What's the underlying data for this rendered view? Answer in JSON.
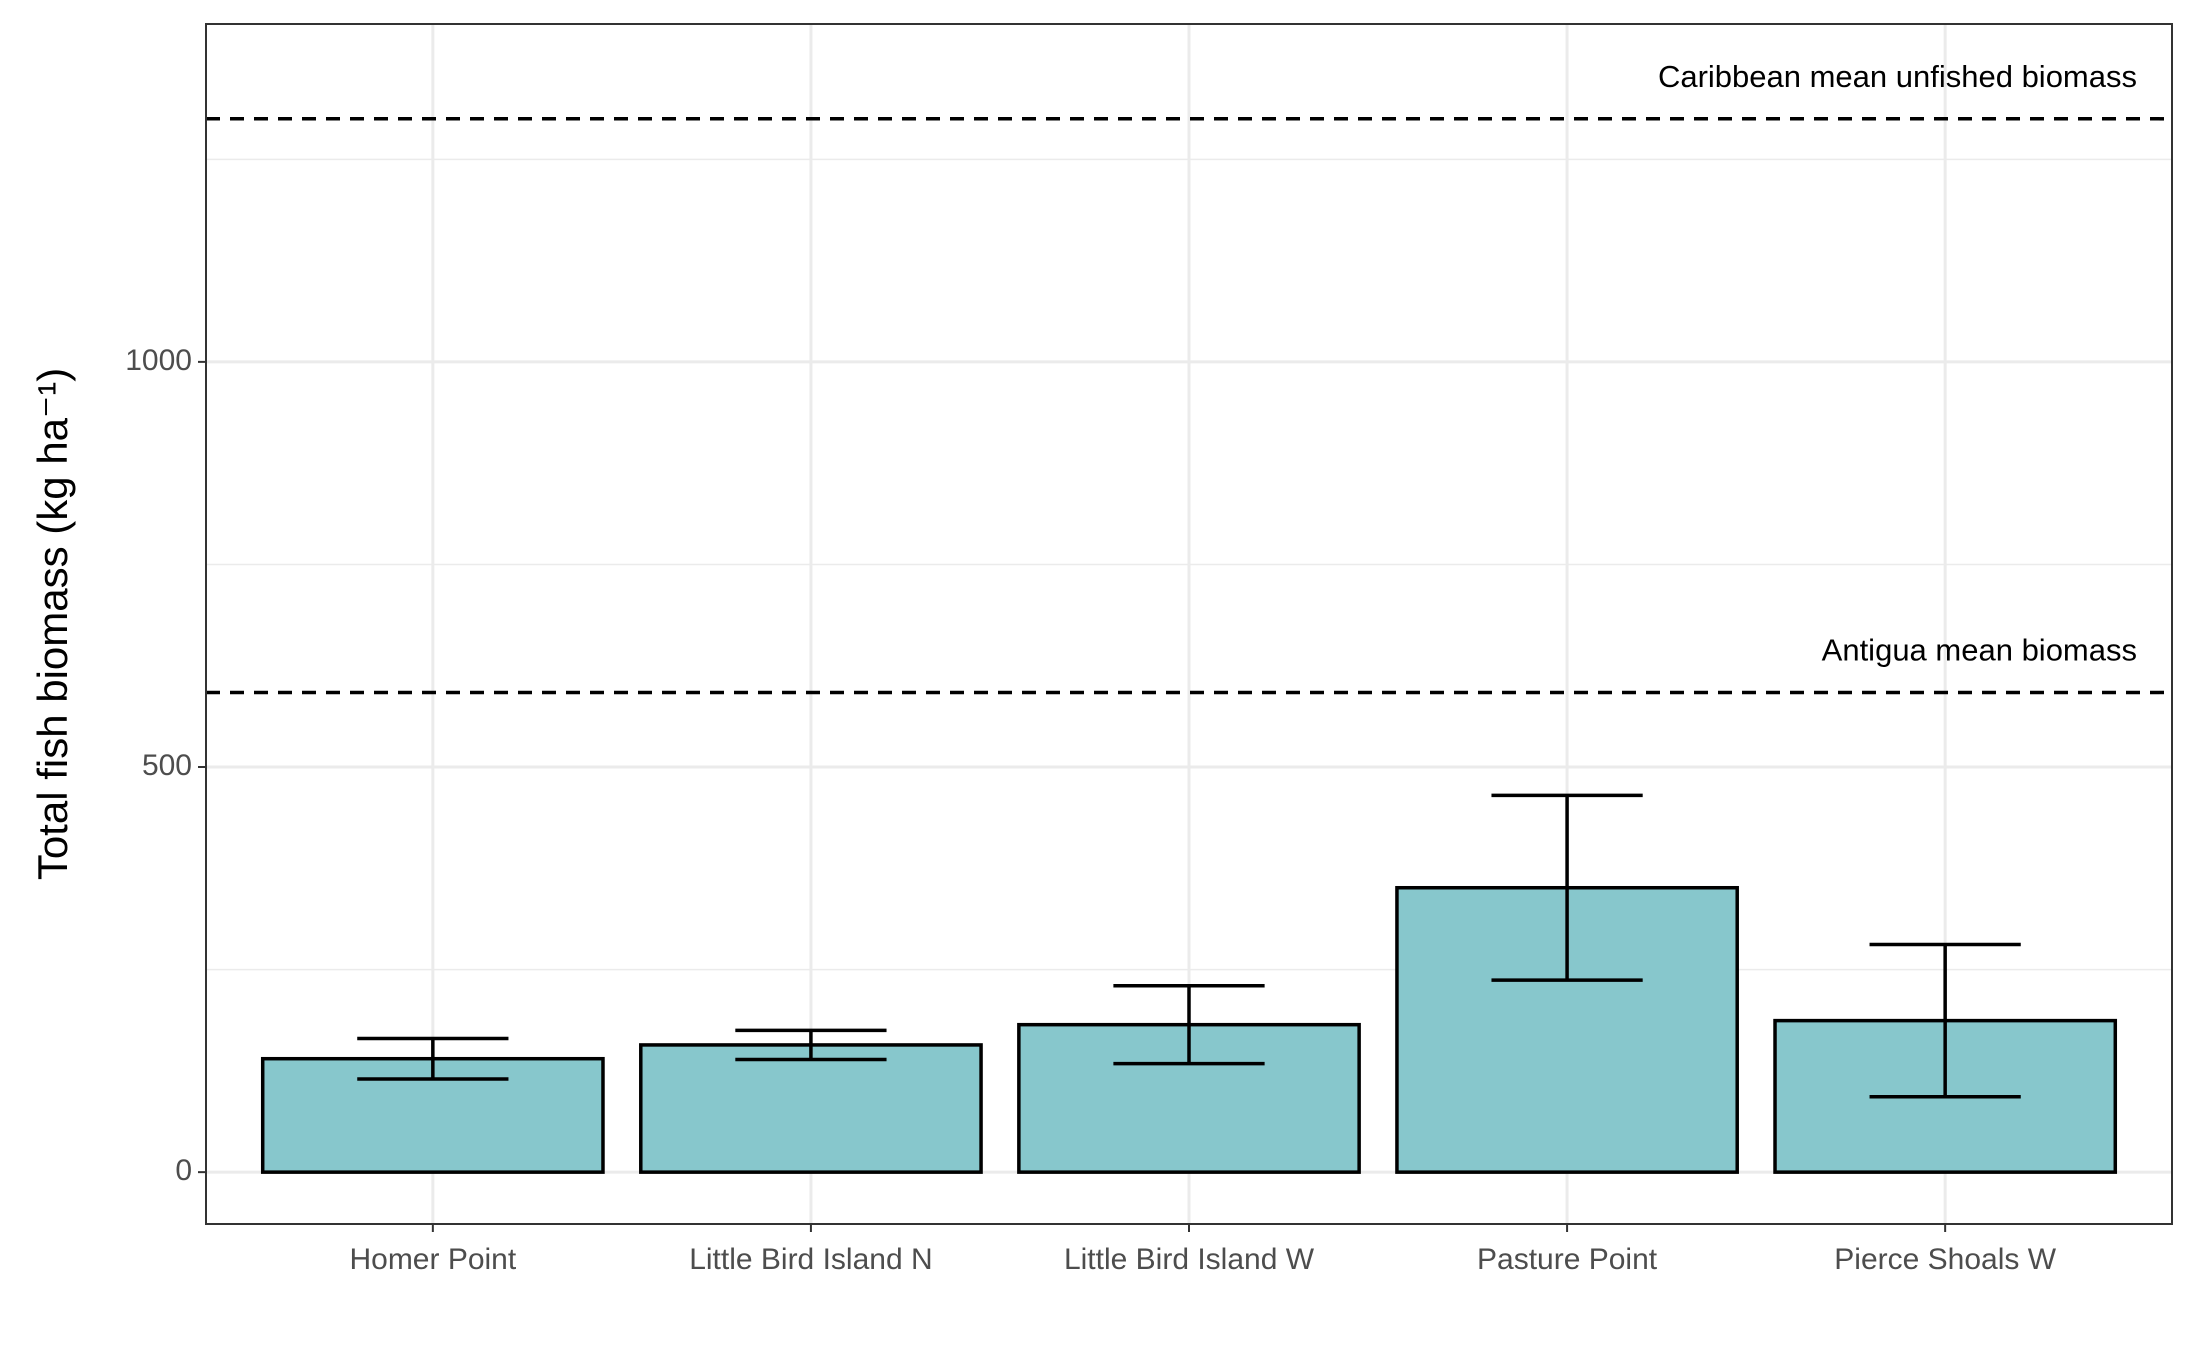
{
  "chart_data": {
    "type": "bar",
    "y_label": "Total fish biomass (kg ha⁻¹)",
    "categories": [
      "Homer Point",
      "Little Bird Island N",
      "Little Bird Island W",
      "Pasture Point",
      "Pierce Shoals W"
    ],
    "values": [
      140,
      157,
      182,
      351,
      187
    ],
    "errors": [
      25,
      18,
      48,
      114,
      94
    ],
    "color": "#87c7cc",
    "ylim": [
      -64,
      1417
    ],
    "yticks": [
      0,
      500,
      1000
    ],
    "minor_yticks": [
      250,
      750,
      1250
    ],
    "grid": true,
    "reference_lines": [
      {
        "label": "Caribbean mean unfished biomass",
        "value": 1300
      },
      {
        "label": "Antigua mean biomass",
        "value": 592
      }
    ]
  }
}
